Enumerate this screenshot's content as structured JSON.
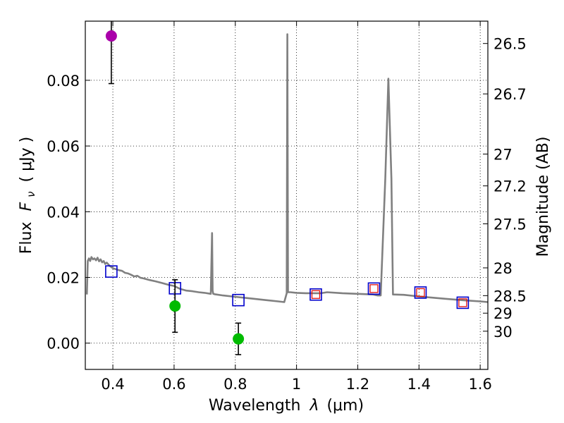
{
  "chart_data": {
    "type": "scatter",
    "xlabel_prefix": "Wavelength",
    "xlabel_symbol": "λ",
    "xlabel_unit": "(μm)",
    "ylabel_prefix": "Flux",
    "ylabel_symbol": "F",
    "ylabel_subscript": "ν",
    "ylabel_unit": "( μJy )",
    "y2label": "Magnitude (AB)",
    "xlim": [
      0.31,
      1.625
    ],
    "ylim": [
      -0.008,
      0.098
    ],
    "grid": true,
    "x_ticks": [
      {
        "value": 0.4,
        "label": "0.4"
      },
      {
        "value": 0.6,
        "label": "0.6"
      },
      {
        "value": 0.8,
        "label": "0.8"
      },
      {
        "value": 1.0,
        "label": "1"
      },
      {
        "value": 1.2,
        "label": "1.2"
      },
      {
        "value": 1.4,
        "label": "1.4"
      },
      {
        "value": 1.6,
        "label": "1.6"
      }
    ],
    "y_ticks": [
      {
        "value": 0.0,
        "label": "0.00"
      },
      {
        "value": 0.02,
        "label": "0.02"
      },
      {
        "value": 0.04,
        "label": "0.04"
      },
      {
        "value": 0.06,
        "label": "0.06"
      },
      {
        "value": 0.08,
        "label": "0.08"
      }
    ],
    "mag_ticks": [
      {
        "value": 26.5,
        "label": "26.5"
      },
      {
        "value": 26.7,
        "label": "26.7"
      },
      {
        "value": 27,
        "label": "27"
      },
      {
        "value": 27.2,
        "label": "27.2"
      },
      {
        "value": 27.5,
        "label": "27.5"
      },
      {
        "value": 28,
        "label": "28"
      },
      {
        "value": 28.5,
        "label": "28.5"
      },
      {
        "value": 29,
        "label": "29"
      },
      {
        "value": 30,
        "label": "30"
      }
    ],
    "model_spectrum": {
      "name": "model SED",
      "color": "#808080",
      "x": [
        0.315,
        0.318,
        0.322,
        0.326,
        0.33,
        0.335,
        0.34,
        0.345,
        0.35,
        0.355,
        0.36,
        0.365,
        0.37,
        0.375,
        0.38,
        0.39,
        0.4,
        0.41,
        0.42,
        0.43,
        0.44,
        0.45,
        0.46,
        0.47,
        0.48,
        0.49,
        0.5,
        0.52,
        0.54,
        0.56,
        0.58,
        0.6,
        0.62,
        0.64,
        0.66,
        0.68,
        0.7,
        0.72,
        0.724,
        0.726,
        0.728,
        0.732,
        0.76,
        0.8,
        0.85,
        0.9,
        0.94,
        0.96,
        0.968,
        0.97,
        0.972,
        0.98,
        1.0,
        1.03,
        1.06,
        1.08,
        1.1,
        1.15,
        1.2,
        1.25,
        1.265,
        1.275,
        1.29,
        1.3,
        1.31,
        1.315,
        1.35,
        1.4,
        1.45,
        1.5,
        1.55,
        1.6,
        1.625
      ],
      "y": [
        0.0148,
        0.025,
        0.0258,
        0.025,
        0.0262,
        0.0255,
        0.0258,
        0.0252,
        0.026,
        0.0249,
        0.0255,
        0.0246,
        0.025,
        0.0241,
        0.0245,
        0.0235,
        0.0228,
        0.0225,
        0.0222,
        0.022,
        0.0214,
        0.0212,
        0.0208,
        0.0203,
        0.0205,
        0.0199,
        0.0197,
        0.0192,
        0.0188,
        0.0183,
        0.0178,
        0.0174,
        0.0165,
        0.016,
        0.0158,
        0.0155,
        0.0153,
        0.015,
        0.0335,
        0.016,
        0.015,
        0.0149,
        0.0145,
        0.0141,
        0.0136,
        0.0131,
        0.0127,
        0.0125,
        0.0152,
        0.094,
        0.0155,
        0.0155,
        0.0153,
        0.0152,
        0.0152,
        0.0152,
        0.0155,
        0.0152,
        0.015,
        0.0148,
        0.0145,
        0.0145,
        0.05,
        0.0805,
        0.05,
        0.0148,
        0.0147,
        0.0142,
        0.0138,
        0.0134,
        0.013,
        0.0127,
        0.0125
      ]
    },
    "model_photometry": {
      "name": "model photometry",
      "color": "#0000cc",
      "x": [
        0.395,
        0.603,
        0.81,
        1.063,
        1.253,
        1.405,
        1.543
      ],
      "y": [
        0.0218,
        0.0167,
        0.0131,
        0.0148,
        0.0166,
        0.0154,
        0.0123
      ]
    },
    "observed_flux": {
      "name": "observed flux",
      "color": "#e01010",
      "x": [
        1.063,
        1.253,
        1.405,
        1.543
      ],
      "y": [
        0.0148,
        0.0166,
        0.0154,
        0.0123
      ]
    },
    "detections": {
      "name": "detections",
      "x": [
        0.395,
        0.603,
        0.81
      ],
      "y": [
        0.0935,
        0.0113,
        0.0013
      ],
      "err_low": [
        0.0145,
        0.008,
        0.0048
      ],
      "err_high": [
        0.0145,
        0.008,
        0.0048
      ],
      "colors": [
        "#aa00aa",
        "#00bb00",
        "#00bb00"
      ]
    }
  }
}
